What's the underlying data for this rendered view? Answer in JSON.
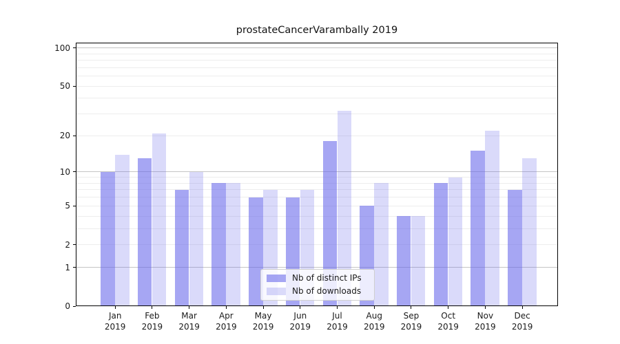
{
  "chart_data": {
    "type": "bar",
    "title": "prostateCancerVarambally 2019",
    "x_months": [
      "Jan",
      "Feb",
      "Mar",
      "Apr",
      "May",
      "Jun",
      "Jul",
      "Aug",
      "Sep",
      "Oct",
      "Nov",
      "Dec"
    ],
    "x_year": "2019",
    "categories": [
      "Jan 2019",
      "Feb 2019",
      "Mar 2019",
      "Apr 2019",
      "May 2019",
      "Jun 2019",
      "Jul 2019",
      "Aug 2019",
      "Sep 2019",
      "Oct 2019",
      "Nov 2019",
      "Dec 2019"
    ],
    "series": [
      {
        "name": "Nb of distinct IPs",
        "fill": "rgba(102,102,235,0.58)",
        "solid_color": "#a9a9f4",
        "values": [
          10,
          13,
          7,
          8,
          6,
          6,
          18,
          5,
          4,
          8,
          15,
          7
        ]
      },
      {
        "name": "Nb of downloads",
        "fill": "rgba(102,102,235,0.24)",
        "solid_color": "#dcdcf9",
        "values": [
          14,
          21,
          10,
          8,
          7,
          7,
          32,
          8,
          4,
          9,
          22,
          13
        ]
      }
    ],
    "yticks": [
      0,
      1,
      2,
      5,
      10,
      20,
      50,
      100
    ],
    "yscale": "log10(1+y)",
    "ylim": [
      0,
      110
    ],
    "xlabel": "",
    "ylabel": "",
    "grid": "horizontal",
    "legend_position": "inside-bottom-center"
  },
  "colors": {
    "grid_major": "#c4c4c4",
    "grid_minor": "#ededed",
    "spine": "#000000",
    "text": "#1a1a1a"
  }
}
